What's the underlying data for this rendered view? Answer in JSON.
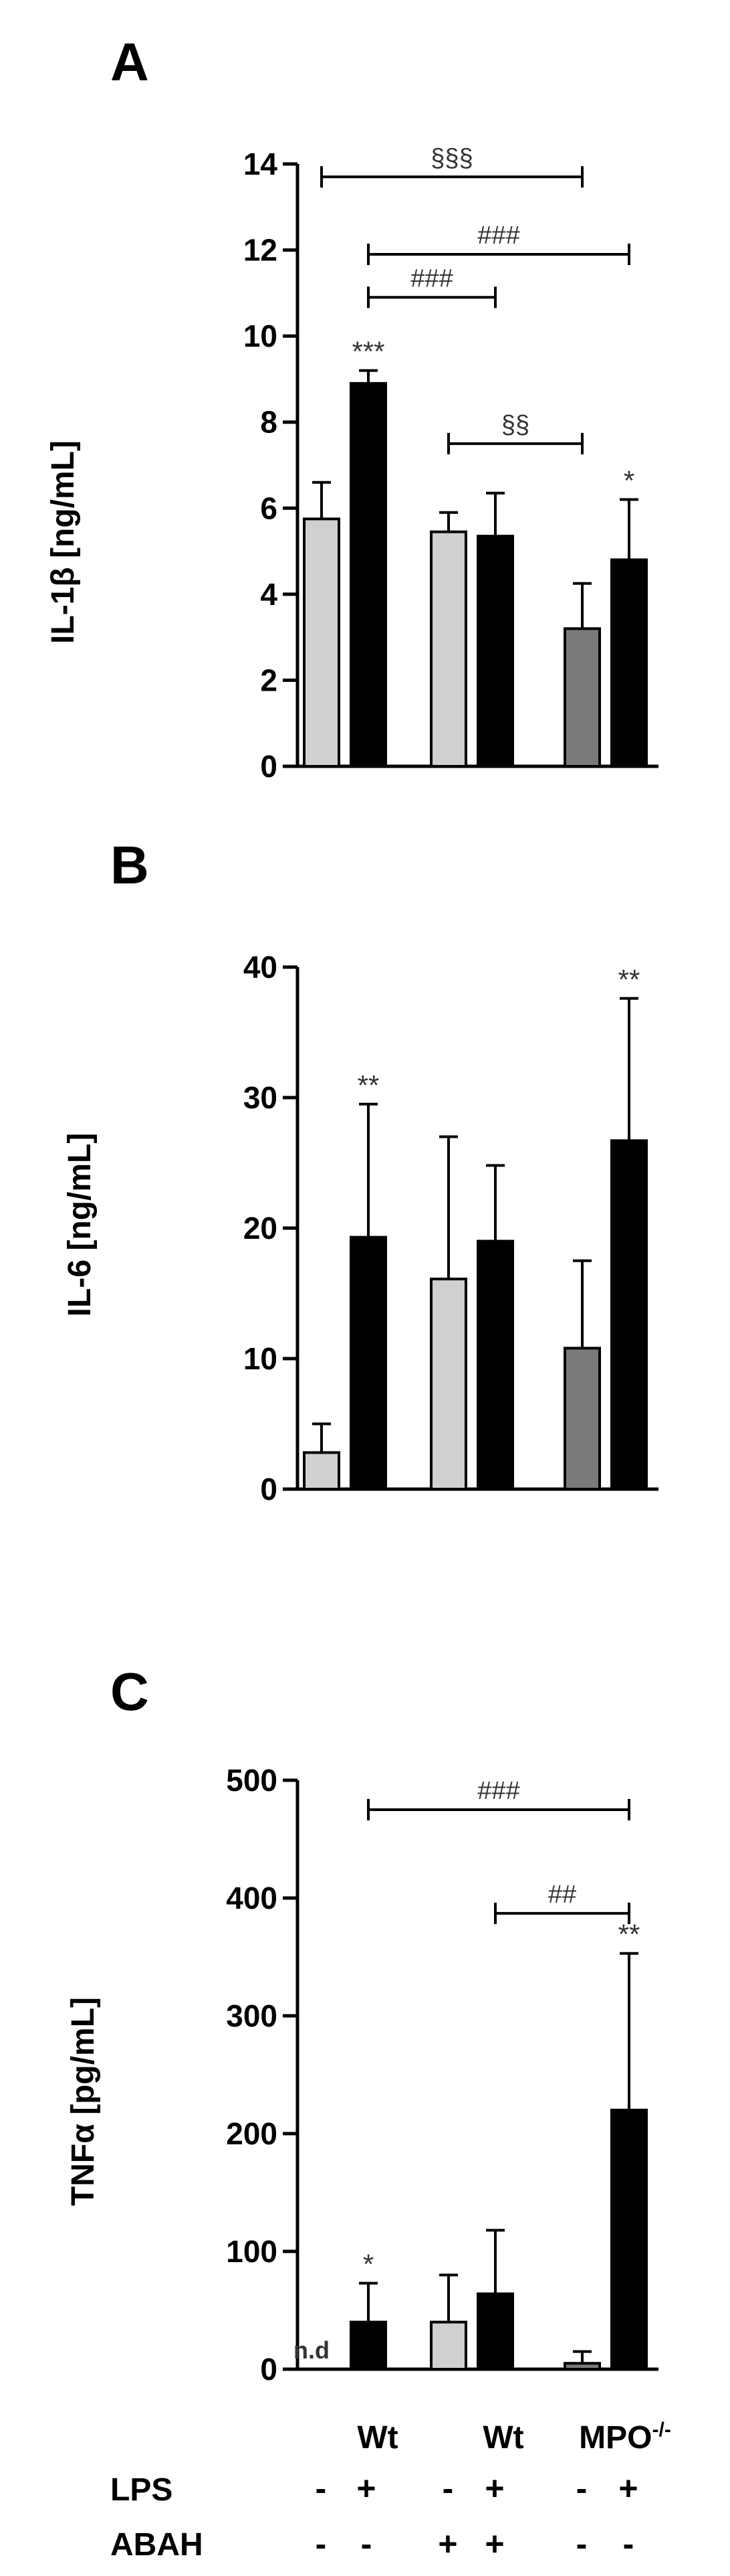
{
  "colors": {
    "ctrl_wt": "#d0d0d0",
    "ctrl_mpo": "#7a7a7a",
    "lps": "#000000"
  },
  "groups": {
    "labels": [
      "Wt",
      "Wt",
      "MPO"
    ],
    "mpo_superscript": "-/-",
    "row_labels": [
      "LPS",
      "ABAH"
    ],
    "lps_signs": [
      "-",
      "+",
      "-",
      "+",
      "-",
      "+"
    ],
    "abah_signs": [
      "-",
      "-",
      "+",
      "+",
      "-",
      "-"
    ]
  },
  "chart_data": [
    {
      "type": "bar",
      "panel": "A",
      "ylabel": "IL-1β [ng/mL]",
      "ylim": [
        0,
        14
      ],
      "yticks": [
        0,
        2,
        4,
        6,
        8,
        10,
        12,
        14
      ],
      "bars": [
        {
          "value": 5.75,
          "err": 0.85,
          "color": "ctrl_wt"
        },
        {
          "value": 8.9,
          "err": 0.3,
          "color": "lps",
          "star": "***"
        },
        {
          "value": 5.45,
          "err": 0.45,
          "color": "ctrl_wt"
        },
        {
          "value": 5.35,
          "err": 1.0,
          "color": "lps"
        },
        {
          "value": 3.2,
          "err": 1.05,
          "color": "ctrl_mpo"
        },
        {
          "value": 4.8,
          "err": 1.4,
          "color": "lps",
          "star": "*"
        }
      ],
      "brackets": [
        {
          "from": 0,
          "to": 4,
          "y": 13.7,
          "label": "§§§"
        },
        {
          "from": 1,
          "to": 5,
          "y": 11.9,
          "label": "###"
        },
        {
          "from": 1,
          "to": 3,
          "y": 10.9,
          "label": "###"
        },
        {
          "from": 2,
          "to": 4,
          "y": 7.5,
          "label": "§§"
        }
      ]
    },
    {
      "type": "bar",
      "panel": "B",
      "ylabel": "IL-6 [ng/mL]",
      "ylim": [
        0,
        40
      ],
      "yticks": [
        0,
        10,
        20,
        30,
        40
      ],
      "bars": [
        {
          "value": 2.8,
          "err": 2.2,
          "color": "ctrl_wt"
        },
        {
          "value": 19.3,
          "err": 10.2,
          "color": "lps",
          "star": "**"
        },
        {
          "value": 16.1,
          "err": 10.9,
          "color": "ctrl_wt"
        },
        {
          "value": 19.0,
          "err": 5.8,
          "color": "lps"
        },
        {
          "value": 10.8,
          "err": 6.7,
          "color": "ctrl_mpo"
        },
        {
          "value": 26.7,
          "err": 10.9,
          "color": "lps",
          "star": "**"
        }
      ],
      "brackets": []
    },
    {
      "type": "bar",
      "panel": "C",
      "ylabel": "TNFα [pg/mL]",
      "ylim": [
        0,
        500
      ],
      "yticks": [
        0,
        100,
        200,
        300,
        400,
        500
      ],
      "bars": [
        {
          "value": 0,
          "err": 0,
          "color": "ctrl_wt",
          "label": "n.d"
        },
        {
          "value": 40,
          "err": 33,
          "color": "lps",
          "star": "*"
        },
        {
          "value": 40,
          "err": 40,
          "color": "ctrl_wt"
        },
        {
          "value": 64,
          "err": 54,
          "color": "lps"
        },
        {
          "value": 5,
          "err": 10,
          "color": "ctrl_mpo"
        },
        {
          "value": 220,
          "err": 133,
          "color": "lps",
          "star": "**"
        }
      ],
      "brackets": [
        {
          "from": 1,
          "to": 5,
          "y": 475,
          "label": "###"
        },
        {
          "from": 3,
          "to": 5,
          "y": 387,
          "label": "##"
        }
      ]
    }
  ]
}
